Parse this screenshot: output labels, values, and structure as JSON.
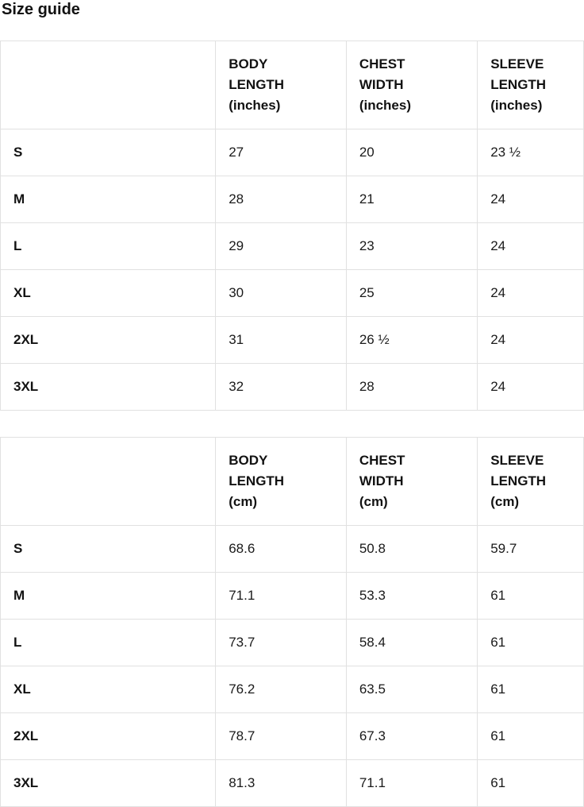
{
  "page": {
    "title": "Size guide"
  },
  "colors": {
    "text": "#121212",
    "border": "#e1e1e1",
    "background": "#ffffff"
  },
  "tables": [
    {
      "unit": "inches",
      "columns": [
        "",
        "BODY\nLENGTH\n(inches)",
        "CHEST\nWIDTH\n(inches)",
        "SLEEVE\nLENGTH\n(inches)"
      ],
      "rows": [
        {
          "size": "S",
          "values": [
            "27",
            "20",
            "23 ½"
          ]
        },
        {
          "size": "M",
          "values": [
            "28",
            "21",
            "24"
          ]
        },
        {
          "size": "L",
          "values": [
            "29",
            "23",
            "24"
          ]
        },
        {
          "size": "XL",
          "values": [
            "30",
            "25",
            "24"
          ]
        },
        {
          "size": "2XL",
          "values": [
            "31",
            "26 ½",
            "24"
          ]
        },
        {
          "size": "3XL",
          "values": [
            "32",
            "28",
            "24"
          ]
        }
      ]
    },
    {
      "unit": "cm",
      "columns": [
        "",
        "BODY\nLENGTH\n(cm)",
        "CHEST\nWIDTH\n(cm)",
        "SLEEVE\nLENGTH\n(cm)"
      ],
      "rows": [
        {
          "size": "S",
          "values": [
            "68.6",
            "50.8",
            "59.7"
          ]
        },
        {
          "size": "M",
          "values": [
            "71.1",
            "53.3",
            "61"
          ]
        },
        {
          "size": "L",
          "values": [
            "73.7",
            "58.4",
            "61"
          ]
        },
        {
          "size": "XL",
          "values": [
            "76.2",
            "63.5",
            "61"
          ]
        },
        {
          "size": "2XL",
          "values": [
            "78.7",
            "67.3",
            "61"
          ]
        },
        {
          "size": "3XL",
          "values": [
            "81.3",
            "71.1",
            "61"
          ]
        }
      ]
    }
  ]
}
